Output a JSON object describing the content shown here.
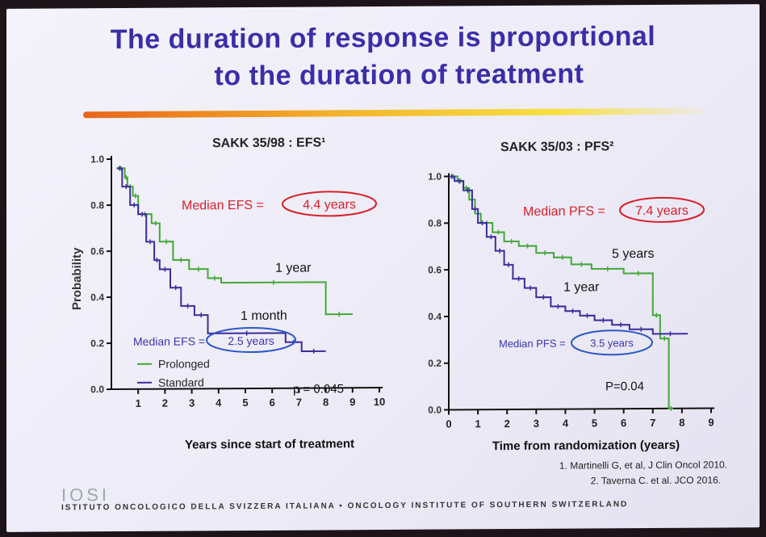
{
  "slide": {
    "title_line1": "The duration of response is proportional",
    "title_line2": "to the duration of treatment",
    "references": [
      "1. Martinelli G, et al, J Clin Oncol 2010.",
      "2. Taverna C. et al. JCO 2016."
    ],
    "logo_text": "IOSI",
    "footer_text": "ISTITUTO ONCOLOGICO DELLA SVIZZERA ITALIANA  •  ONCOLOGY INSTITUTE OF SOUTHERN SWITZERLAND",
    "colors": {
      "title": "#3a2ea8",
      "green_curve": "#44a83a",
      "blue_curve": "#3a2e9c",
      "red_oval": "#d8202a",
      "blue_oval": "#2b58c8"
    }
  },
  "chart_data": [
    {
      "type": "line",
      "title": "SAKK 35/98 : EFS¹",
      "xlabel": "Years since start of treatment",
      "ylabel": "Probability",
      "xlim": [
        0,
        10
      ],
      "ylim": [
        0,
        1
      ],
      "xticks": [
        1,
        2,
        3,
        4,
        5,
        6,
        7,
        8,
        9,
        10
      ],
      "yticks": [
        0.0,
        0.2,
        0.4,
        0.6,
        0.8,
        1.0
      ],
      "ytick_labels": [
        "0.0",
        "0.2",
        "0.4",
        "0.6",
        "0.8",
        "1.0"
      ],
      "legend": [
        "Prolonged",
        "Standard"
      ],
      "annotations": {
        "median_top": "Median EFS = 4.4 years",
        "median_top_label": "Median EFS =",
        "median_top_value": "4.4 years",
        "median_bottom_label": "Median EFS =",
        "median_bottom_value": "2.5 years",
        "curve_label_green": "1 year",
        "curve_label_blue": "1 month",
        "pvalue": "p = 0.045"
      },
      "series": [
        {
          "name": "Prolonged",
          "color": "#44a83a",
          "x": [
            0.2,
            0.5,
            0.5,
            0.6,
            0.6,
            0.8,
            0.8,
            1.0,
            1.0,
            1.5,
            1.5,
            1.8,
            1.8,
            2.3,
            2.3,
            2.9,
            2.9,
            3.6,
            3.6,
            4.1,
            4.1,
            8.0,
            8.0,
            9.0
          ],
          "y": [
            0.96,
            0.96,
            0.92,
            0.92,
            0.88,
            0.88,
            0.84,
            0.84,
            0.76,
            0.76,
            0.72,
            0.72,
            0.64,
            0.64,
            0.56,
            0.56,
            0.52,
            0.52,
            0.48,
            0.48,
            0.46,
            0.46,
            0.32,
            0.32
          ]
        },
        {
          "name": "Standard",
          "color": "#3a2e9c",
          "x": [
            0.2,
            0.4,
            0.4,
            0.7,
            0.7,
            1.0,
            1.0,
            1.3,
            1.3,
            1.6,
            1.6,
            1.8,
            1.8,
            2.2,
            2.2,
            2.6,
            2.6,
            3.1,
            3.1,
            3.6,
            3.6,
            6.5,
            6.5,
            7.1,
            7.1,
            8.0
          ],
          "y": [
            0.96,
            0.96,
            0.88,
            0.88,
            0.8,
            0.8,
            0.76,
            0.76,
            0.64,
            0.64,
            0.56,
            0.56,
            0.52,
            0.52,
            0.44,
            0.44,
            0.36,
            0.36,
            0.32,
            0.32,
            0.24,
            0.24,
            0.2,
            0.2,
            0.16,
            0.16
          ]
        }
      ]
    },
    {
      "type": "line",
      "title": "SAKK 35/03 : PFS²",
      "xlabel": "Time from randomization (years)",
      "xlim": [
        0,
        9
      ],
      "ylim": [
        0,
        1
      ],
      "xticks": [
        0,
        1,
        2,
        3,
        4,
        5,
        6,
        7,
        8,
        9
      ],
      "yticks": [
        0.0,
        0.2,
        0.4,
        0.6,
        0.8,
        1.0
      ],
      "ytick_labels": [
        "0.0",
        "0.2",
        "0.4",
        "0.6",
        "0.8",
        "1.0"
      ],
      "annotations": {
        "median_top_label": "Median PFS =",
        "median_top_value": "7.4 years",
        "median_bottom_label": "Median PFS =",
        "median_bottom_value": "3.5 years",
        "curve_label_green": "5 years",
        "curve_label_blue": "1 year",
        "pvalue": "P=0.04"
      },
      "series": [
        {
          "name": "5 years",
          "color": "#44a83a",
          "x": [
            0,
            0.3,
            0.3,
            0.5,
            0.5,
            0.7,
            0.7,
            0.9,
            0.9,
            1.1,
            1.1,
            1.5,
            1.5,
            1.9,
            1.9,
            2.4,
            2.4,
            3.0,
            3.0,
            3.6,
            3.6,
            4.2,
            4.2,
            4.9,
            4.9,
            6.0,
            6.0,
            7.0,
            7.0,
            7.25,
            7.25,
            7.55,
            7.55,
            7.7
          ],
          "y": [
            1.0,
            1.0,
            0.98,
            0.98,
            0.95,
            0.95,
            0.9,
            0.9,
            0.84,
            0.84,
            0.8,
            0.8,
            0.76,
            0.76,
            0.72,
            0.72,
            0.7,
            0.7,
            0.67,
            0.67,
            0.65,
            0.65,
            0.62,
            0.62,
            0.6,
            0.6,
            0.58,
            0.58,
            0.4,
            0.4,
            0.3,
            0.3,
            0.0,
            0.0
          ]
        },
        {
          "name": "1 year",
          "color": "#3a2e9c",
          "x": [
            0,
            0.2,
            0.2,
            0.5,
            0.5,
            0.8,
            0.8,
            1.0,
            1.0,
            1.3,
            1.3,
            1.6,
            1.6,
            1.9,
            1.9,
            2.2,
            2.2,
            2.6,
            2.6,
            3.0,
            3.0,
            3.5,
            3.5,
            4.0,
            4.0,
            4.5,
            4.5,
            5.0,
            5.0,
            5.6,
            5.6,
            6.2,
            6.2,
            7.0,
            7.0,
            8.2
          ],
          "y": [
            1.0,
            1.0,
            0.98,
            0.98,
            0.94,
            0.94,
            0.86,
            0.86,
            0.8,
            0.8,
            0.74,
            0.74,
            0.68,
            0.68,
            0.62,
            0.62,
            0.56,
            0.56,
            0.52,
            0.52,
            0.48,
            0.48,
            0.44,
            0.44,
            0.42,
            0.42,
            0.4,
            0.4,
            0.38,
            0.38,
            0.36,
            0.36,
            0.34,
            0.34,
            0.32,
            0.32
          ]
        }
      ]
    }
  ]
}
